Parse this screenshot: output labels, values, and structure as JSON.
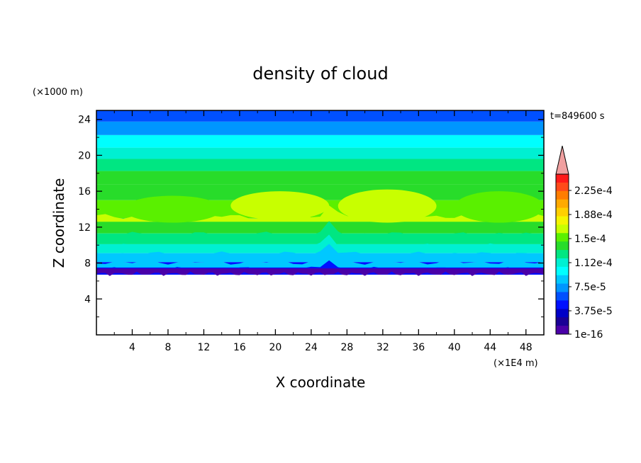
{
  "chart_data": {
    "type": "heatmap",
    "title": "density of cloud",
    "xlabel": "X coordinate",
    "ylabel": "Z coordinate",
    "x_unit": "(×1E4 m)",
    "y_unit": "(×1000 m)",
    "time_label": "t=849600 s",
    "xlim": [
      0,
      50
    ],
    "ylim": [
      0,
      25
    ],
    "x_ticks": [
      "4",
      "8",
      "12",
      "16",
      "20",
      "24",
      "28",
      "32",
      "36",
      "40",
      "44",
      "48"
    ],
    "y_ticks": [
      "4",
      "8",
      "12",
      "16",
      "20",
      "24"
    ],
    "colorbar": {
      "labels": [
        "2.25e-4",
        "1.88e-4",
        "1.5e-4",
        "1.12e-4",
        "7.5e-5",
        "3.75e-5",
        "1e-16"
      ],
      "levels": [
        "2.4e-4",
        "2.25e-4",
        "2.06e-4",
        "1.88e-4",
        "1.69e-4",
        "1.5e-4",
        "1.31e-4",
        "1.12e-4",
        "9.4e-5",
        "7.5e-5",
        "5.6e-5",
        "3.75e-5",
        "1.9e-5",
        "1e-16"
      ],
      "colors": [
        "#ff1a1a",
        "#ff4a1a",
        "#ff7d00",
        "#ffaa00",
        "#ffd000",
        "#f5f500",
        "#c8ff00",
        "#5af000",
        "#28dc2a",
        "#00e682",
        "#00f0d2",
        "#00ffff",
        "#00c8ff",
        "#0096ff",
        "#0050ff",
        "#0010ff",
        "#0000c8",
        "#1a0096",
        "#4a00a8"
      ],
      "extend_color": "#f0a0a0"
    },
    "profile": [
      {
        "z": 24.5,
        "value": 6e-05
      },
      {
        "z": 23.0,
        "value": 7.2e-05
      },
      {
        "z": 21.5,
        "value": 8.8e-05
      },
      {
        "z": 20.2,
        "value": 0.000105
      },
      {
        "z": 19.0,
        "value": 0.000118
      },
      {
        "z": 17.5,
        "value": 0.000128
      },
      {
        "z": 16.0,
        "value": 0.000135
      },
      {
        "z": 14.0,
        "value": 0.000152
      },
      {
        "z": 12.0,
        "value": 0.000136
      },
      {
        "z": 10.6,
        "value": 0.000122
      },
      {
        "z": 9.6,
        "value": 0.0001
      },
      {
        "z": 8.6,
        "value": 7.5e-05
      },
      {
        "z": 7.6,
        "value": 3.7e-05
      },
      {
        "z": 6.8,
        "value": 1e-05
      }
    ],
    "cloud_base_z": 6.8,
    "peak_regions": [
      {
        "x_range": [
          3,
          14
        ],
        "z_range": [
          12.5,
          15.5
        ],
        "value": 0.000152
      },
      {
        "x_range": [
          15,
          26
        ],
        "z_range": [
          12.8,
          16.0
        ],
        "value": 0.000155
      },
      {
        "x_range": [
          27,
          38
        ],
        "z_range": [
          12.5,
          16.2
        ],
        "value": 0.000155
      },
      {
        "x_range": [
          40,
          50
        ],
        "z_range": [
          12.5,
          16.0
        ],
        "value": 0.000153
      }
    ]
  }
}
